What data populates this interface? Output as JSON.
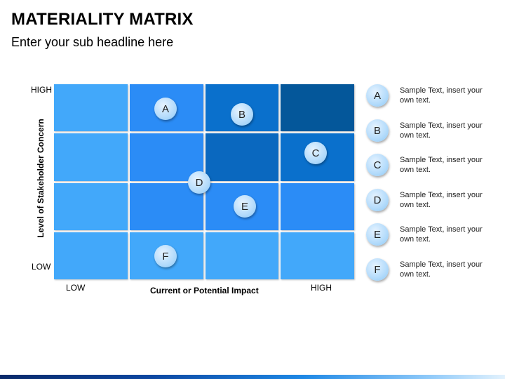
{
  "header": {
    "title": "MATERIALITY MATRIX",
    "subtitle": "Enter your sub headline here"
  },
  "axes": {
    "y_title": "Level of Stakeholder Concern",
    "y_high": "HIGH",
    "y_low": "LOW",
    "x_title": "Current or Potential Impact",
    "x_low": "LOW",
    "x_high": "HIGH"
  },
  "matrix": {
    "rows": 4,
    "cols": 4,
    "cell_colors": [
      [
        "#42a8fa",
        "#2b8cf6",
        "#0a70cc",
        "#04579a"
      ],
      [
        "#42a8fa",
        "#2b8cf6",
        "#0a68bf",
        "#0a70cc"
      ],
      [
        "#42a8fa",
        "#2b8cf6",
        "#2b8cf6",
        "#2b8cf6"
      ],
      [
        "#42a8fa",
        "#42a8fa",
        "#42a8fa",
        "#42a8fa"
      ]
    ],
    "bubbles": [
      {
        "label": "A"
      },
      {
        "label": "B"
      },
      {
        "label": "C"
      },
      {
        "label": "D"
      },
      {
        "label": "E"
      },
      {
        "label": "F"
      }
    ]
  },
  "legend": [
    {
      "label": "A",
      "text": "Sample Text, insert your own text."
    },
    {
      "label": "B",
      "text": "Sample Text, insert your own text."
    },
    {
      "label": "C",
      "text": "Sample Text, insert your own text."
    },
    {
      "label": "D",
      "text": "Sample Text, insert your own text."
    },
    {
      "label": "E",
      "text": "Sample Text, insert your own text."
    },
    {
      "label": "F",
      "text": "Sample Text, insert your own text."
    }
  ]
}
